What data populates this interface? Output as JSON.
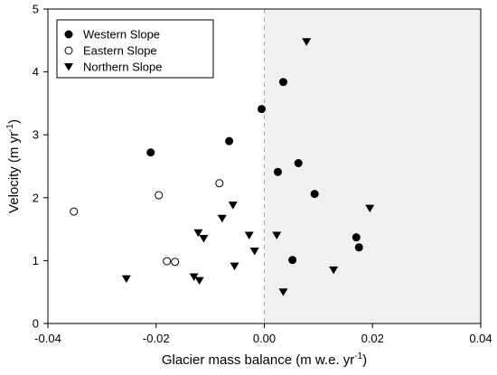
{
  "chart_data": {
    "type": "scatter",
    "xlabel": "Glacier mass balance (m w.e. yr",
    "xlabel_superscript": "-1",
    "xlabel_suffix": ")",
    "ylabel": "Velocity (m yr",
    "ylabel_superscript": "-1",
    "ylabel_suffix": ")",
    "xlim": [
      -0.04,
      0.04
    ],
    "ylim": [
      0,
      5
    ],
    "x_ticks": [
      -0.04,
      -0.02,
      0.0,
      0.02,
      0.04
    ],
    "x_tick_labels": [
      "-0.04",
      "-0.02",
      "0.00",
      "0.02",
      "0.04"
    ],
    "y_ticks": [
      0,
      1,
      2,
      3,
      4,
      5
    ],
    "y_tick_labels": [
      "0",
      "1",
      "2",
      "3",
      "4",
      "5"
    ],
    "grid": false,
    "shaded_region": {
      "x_from": 0.0,
      "x_to": 0.04,
      "color": "#f0f0f0"
    },
    "reference_line": {
      "x": 0.0,
      "style": "dashed",
      "color": "#aaaaaa"
    },
    "legend_position": "top-left",
    "series": [
      {
        "name": "Western Slope",
        "marker": "filled-circle",
        "color": "#000000",
        "points": [
          {
            "x": -0.021,
            "y": 2.72
          },
          {
            "x": -0.0065,
            "y": 2.9
          },
          {
            "x": -0.0005,
            "y": 3.41
          },
          {
            "x": 0.0035,
            "y": 3.84
          },
          {
            "x": 0.0025,
            "y": 2.41
          },
          {
            "x": 0.0063,
            "y": 2.55
          },
          {
            "x": 0.0093,
            "y": 2.06
          },
          {
            "x": 0.017,
            "y": 1.37
          },
          {
            "x": 0.0175,
            "y": 1.21
          },
          {
            "x": 0.0052,
            "y": 1.01
          }
        ]
      },
      {
        "name": "Eastern Slope",
        "marker": "open-circle",
        "color": "#000000",
        "points": [
          {
            "x": -0.0352,
            "y": 1.78
          },
          {
            "x": -0.0195,
            "y": 2.04
          },
          {
            "x": -0.0083,
            "y": 2.23
          },
          {
            "x": -0.018,
            "y": 0.99
          },
          {
            "x": -0.0165,
            "y": 0.98
          }
        ]
      },
      {
        "name": "Northern Slope",
        "marker": "filled-triangle-down",
        "color": "#000000",
        "points": [
          {
            "x": 0.0078,
            "y": 4.48
          },
          {
            "x": -0.0255,
            "y": 0.71
          },
          {
            "x": -0.013,
            "y": 0.74
          },
          {
            "x": -0.012,
            "y": 0.68
          },
          {
            "x": -0.0122,
            "y": 1.44
          },
          {
            "x": -0.0112,
            "y": 1.35
          },
          {
            "x": -0.0078,
            "y": 1.67
          },
          {
            "x": -0.0058,
            "y": 1.88
          },
          {
            "x": -0.0028,
            "y": 1.4
          },
          {
            "x": -0.0018,
            "y": 1.15
          },
          {
            "x": -0.0055,
            "y": 0.91
          },
          {
            "x": 0.0023,
            "y": 1.4
          },
          {
            "x": 0.0035,
            "y": 0.5
          },
          {
            "x": 0.0128,
            "y": 0.85
          },
          {
            "x": 0.0195,
            "y": 1.83
          }
        ]
      }
    ]
  }
}
